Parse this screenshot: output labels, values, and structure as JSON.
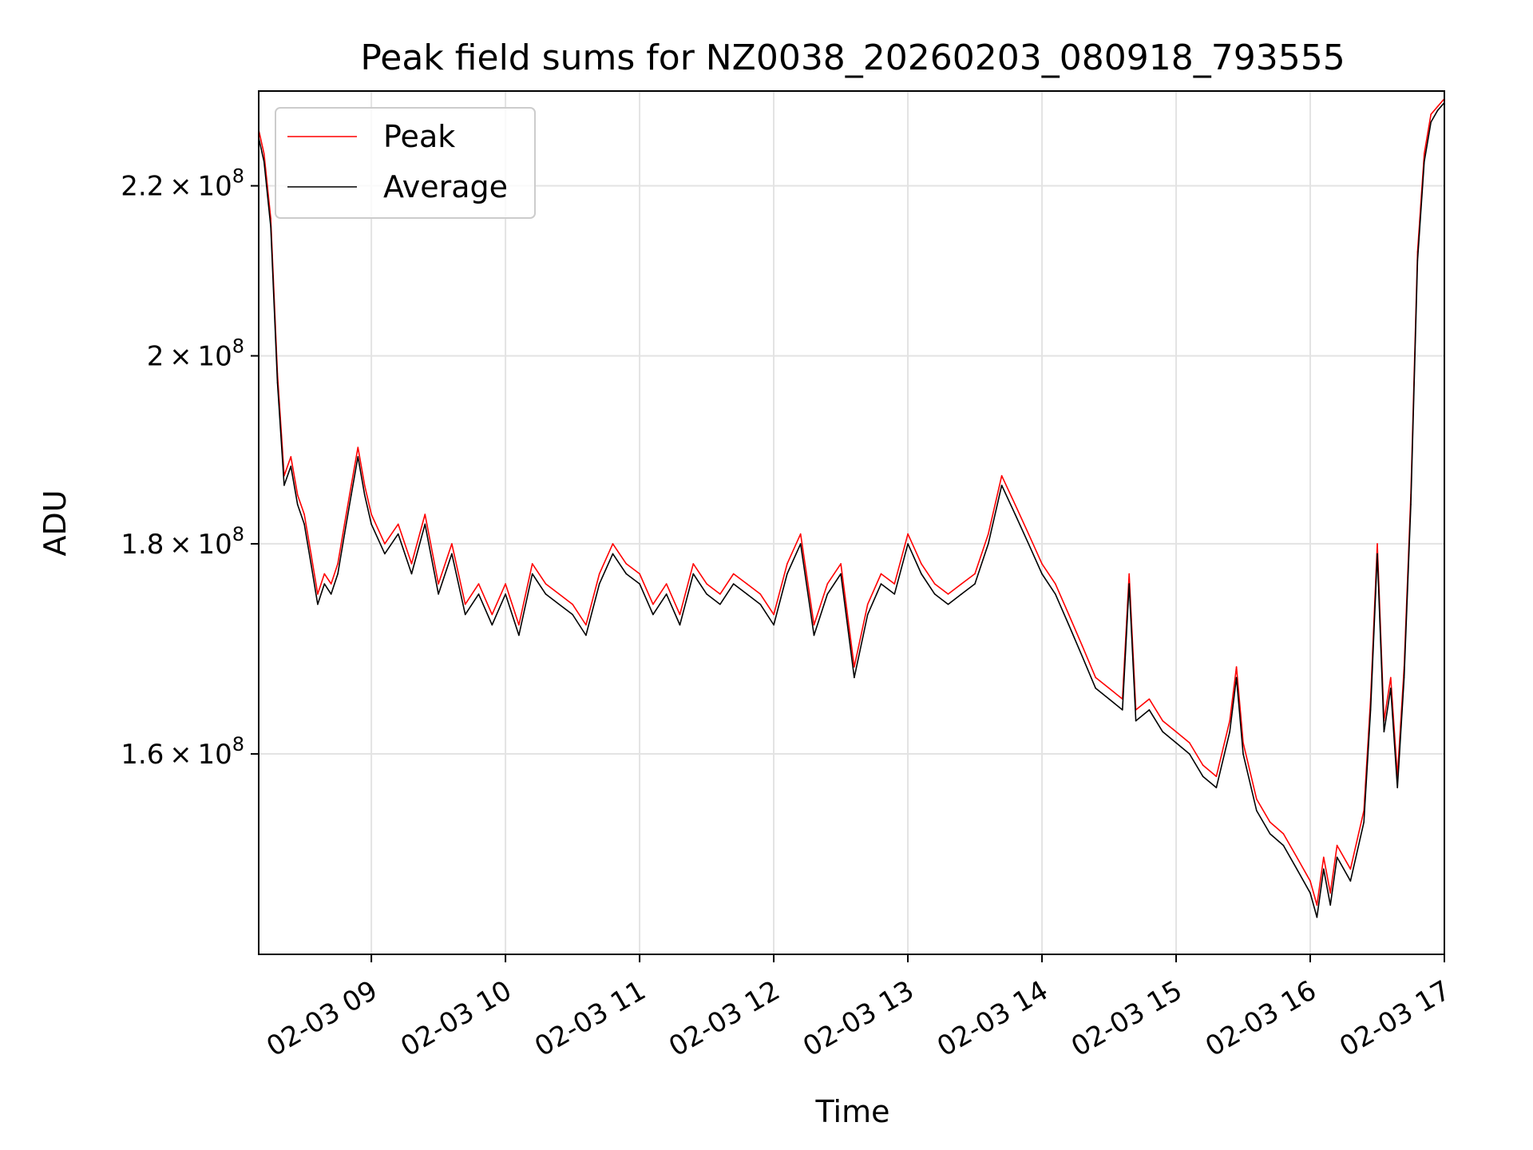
{
  "chart_data": {
    "type": "line",
    "title": "Peak field sums for NZ0038_20260203_080918_793555",
    "xlabel": "Time",
    "ylabel": "ADU",
    "y_scale": "log",
    "xlim": [
      8.16,
      17.0
    ],
    "ylim": [
      143000000,
      232000000
    ],
    "grid": true,
    "legend_position": "upper-left",
    "x_unit": "hours on 02-03",
    "x_ticks": [
      {
        "value": 9,
        "label": "02-03 09"
      },
      {
        "value": 10,
        "label": "02-03 10"
      },
      {
        "value": 11,
        "label": "02-03 11"
      },
      {
        "value": 12,
        "label": "02-03 12"
      },
      {
        "value": 13,
        "label": "02-03 13"
      },
      {
        "value": 14,
        "label": "02-03 14"
      },
      {
        "value": 15,
        "label": "02-03 15"
      },
      {
        "value": 16,
        "label": "02-03 16"
      },
      {
        "value": 17,
        "label": "02-03 17"
      }
    ],
    "y_ticks": [
      {
        "value": 160000000,
        "mantissa": "1.6",
        "times": "×",
        "base": "10",
        "exp": "8"
      },
      {
        "value": 180000000,
        "mantissa": "1.8",
        "times": "×",
        "base": "10",
        "exp": "8"
      },
      {
        "value": 200000000,
        "mantissa": "2",
        "times": "×",
        "base": "10",
        "exp": "8"
      },
      {
        "value": 220000000,
        "mantissa": "2.2",
        "times": "×",
        "base": "10",
        "exp": "8"
      }
    ],
    "series": [
      {
        "name": "Peak",
        "color": "#ff0000",
        "x": [
          8.16,
          8.2,
          8.25,
          8.3,
          8.35,
          8.4,
          8.45,
          8.5,
          8.55,
          8.6,
          8.65,
          8.7,
          8.75,
          8.8,
          8.85,
          8.9,
          8.95,
          9.0,
          9.1,
          9.2,
          9.3,
          9.4,
          9.5,
          9.6,
          9.7,
          9.8,
          9.9,
          10.0,
          10.1,
          10.2,
          10.3,
          10.4,
          10.5,
          10.6,
          10.7,
          10.8,
          10.9,
          11.0,
          11.1,
          11.2,
          11.3,
          11.4,
          11.5,
          11.6,
          11.7,
          11.8,
          11.9,
          12.0,
          12.1,
          12.2,
          12.3,
          12.4,
          12.5,
          12.6,
          12.7,
          12.8,
          12.9,
          13.0,
          13.1,
          13.2,
          13.3,
          13.4,
          13.5,
          13.6,
          13.7,
          13.8,
          13.9,
          14.0,
          14.1,
          14.2,
          14.3,
          14.4,
          14.5,
          14.6,
          14.65,
          14.7,
          14.8,
          14.9,
          15.0,
          15.1,
          15.2,
          15.3,
          15.4,
          15.45,
          15.5,
          15.6,
          15.7,
          15.8,
          15.9,
          16.0,
          16.05,
          16.1,
          16.15,
          16.2,
          16.3,
          16.4,
          16.45,
          16.5,
          16.55,
          16.6,
          16.65,
          16.7,
          16.75,
          16.8,
          16.85,
          16.9,
          16.95,
          17.0
        ],
        "values": [
          227000000,
          224000000,
          216000000,
          198000000,
          187000000,
          189000000,
          185000000,
          183000000,
          179000000,
          175000000,
          177000000,
          176000000,
          178000000,
          182000000,
          186000000,
          190000000,
          186000000,
          183000000,
          180000000,
          182000000,
          178000000,
          183000000,
          176000000,
          180000000,
          174000000,
          176000000,
          173000000,
          176000000,
          172000000,
          178000000,
          176000000,
          175000000,
          174000000,
          172000000,
          177000000,
          180000000,
          178000000,
          177000000,
          174000000,
          176000000,
          173000000,
          178000000,
          176000000,
          175000000,
          177000000,
          176000000,
          175000000,
          173000000,
          178000000,
          181000000,
          172000000,
          176000000,
          178000000,
          168000000,
          174000000,
          177000000,
          176000000,
          181000000,
          178000000,
          176000000,
          175000000,
          176000000,
          177000000,
          181000000,
          187000000,
          184000000,
          181000000,
          178000000,
          176000000,
          173000000,
          170000000,
          167000000,
          166000000,
          165000000,
          177000000,
          164000000,
          165000000,
          163000000,
          162000000,
          161000000,
          159000000,
          158000000,
          163000000,
          168000000,
          161000000,
          156000000,
          154000000,
          153000000,
          151000000,
          149000000,
          147000000,
          151000000,
          148000000,
          152000000,
          150000000,
          155000000,
          165000000,
          180000000,
          163000000,
          167000000,
          158000000,
          168000000,
          185000000,
          212000000,
          224000000,
          229000000,
          230000000,
          231000000
        ]
      },
      {
        "name": "Average",
        "color": "#000000",
        "x": [
          8.16,
          8.2,
          8.25,
          8.3,
          8.35,
          8.4,
          8.45,
          8.5,
          8.55,
          8.6,
          8.65,
          8.7,
          8.75,
          8.8,
          8.85,
          8.9,
          8.95,
          9.0,
          9.1,
          9.2,
          9.3,
          9.4,
          9.5,
          9.6,
          9.7,
          9.8,
          9.9,
          10.0,
          10.1,
          10.2,
          10.3,
          10.4,
          10.5,
          10.6,
          10.7,
          10.8,
          10.9,
          11.0,
          11.1,
          11.2,
          11.3,
          11.4,
          11.5,
          11.6,
          11.7,
          11.8,
          11.9,
          12.0,
          12.1,
          12.2,
          12.3,
          12.4,
          12.5,
          12.6,
          12.7,
          12.8,
          12.9,
          13.0,
          13.1,
          13.2,
          13.3,
          13.4,
          13.5,
          13.6,
          13.7,
          13.8,
          13.9,
          14.0,
          14.1,
          14.2,
          14.3,
          14.4,
          14.5,
          14.6,
          14.65,
          14.7,
          14.8,
          14.9,
          15.0,
          15.1,
          15.2,
          15.3,
          15.4,
          15.45,
          15.5,
          15.6,
          15.7,
          15.8,
          15.9,
          16.0,
          16.05,
          16.1,
          16.15,
          16.2,
          16.3,
          16.4,
          16.45,
          16.5,
          16.55,
          16.6,
          16.65,
          16.7,
          16.75,
          16.8,
          16.85,
          16.9,
          16.95,
          17.0
        ],
        "values": [
          226000000,
          223000000,
          215000000,
          197000000,
          186000000,
          188000000,
          184000000,
          182000000,
          178000000,
          174000000,
          176000000,
          175000000,
          177000000,
          181000000,
          185000000,
          189000000,
          185000000,
          182000000,
          179000000,
          181000000,
          177000000,
          182000000,
          175000000,
          179000000,
          173000000,
          175000000,
          172000000,
          175000000,
          171000000,
          177000000,
          175000000,
          174000000,
          173000000,
          171000000,
          176000000,
          179000000,
          177000000,
          176000000,
          173000000,
          175000000,
          172000000,
          177000000,
          175000000,
          174000000,
          176000000,
          175000000,
          174000000,
          172000000,
          177000000,
          180000000,
          171000000,
          175000000,
          177000000,
          167000000,
          173000000,
          176000000,
          175000000,
          180000000,
          177000000,
          175000000,
          174000000,
          175000000,
          176000000,
          180000000,
          186000000,
          183000000,
          180000000,
          177000000,
          175000000,
          172000000,
          169000000,
          166000000,
          165000000,
          164000000,
          176000000,
          163000000,
          164000000,
          162000000,
          161000000,
          160000000,
          158000000,
          157000000,
          162000000,
          167000000,
          160000000,
          155000000,
          153000000,
          152000000,
          150000000,
          148000000,
          146000000,
          150000000,
          147000000,
          151000000,
          149000000,
          154000000,
          164000000,
          179000000,
          162000000,
          166000000,
          157000000,
          167000000,
          184000000,
          211000000,
          223000000,
          228000000,
          229500000,
          230500000
        ]
      }
    ]
  }
}
